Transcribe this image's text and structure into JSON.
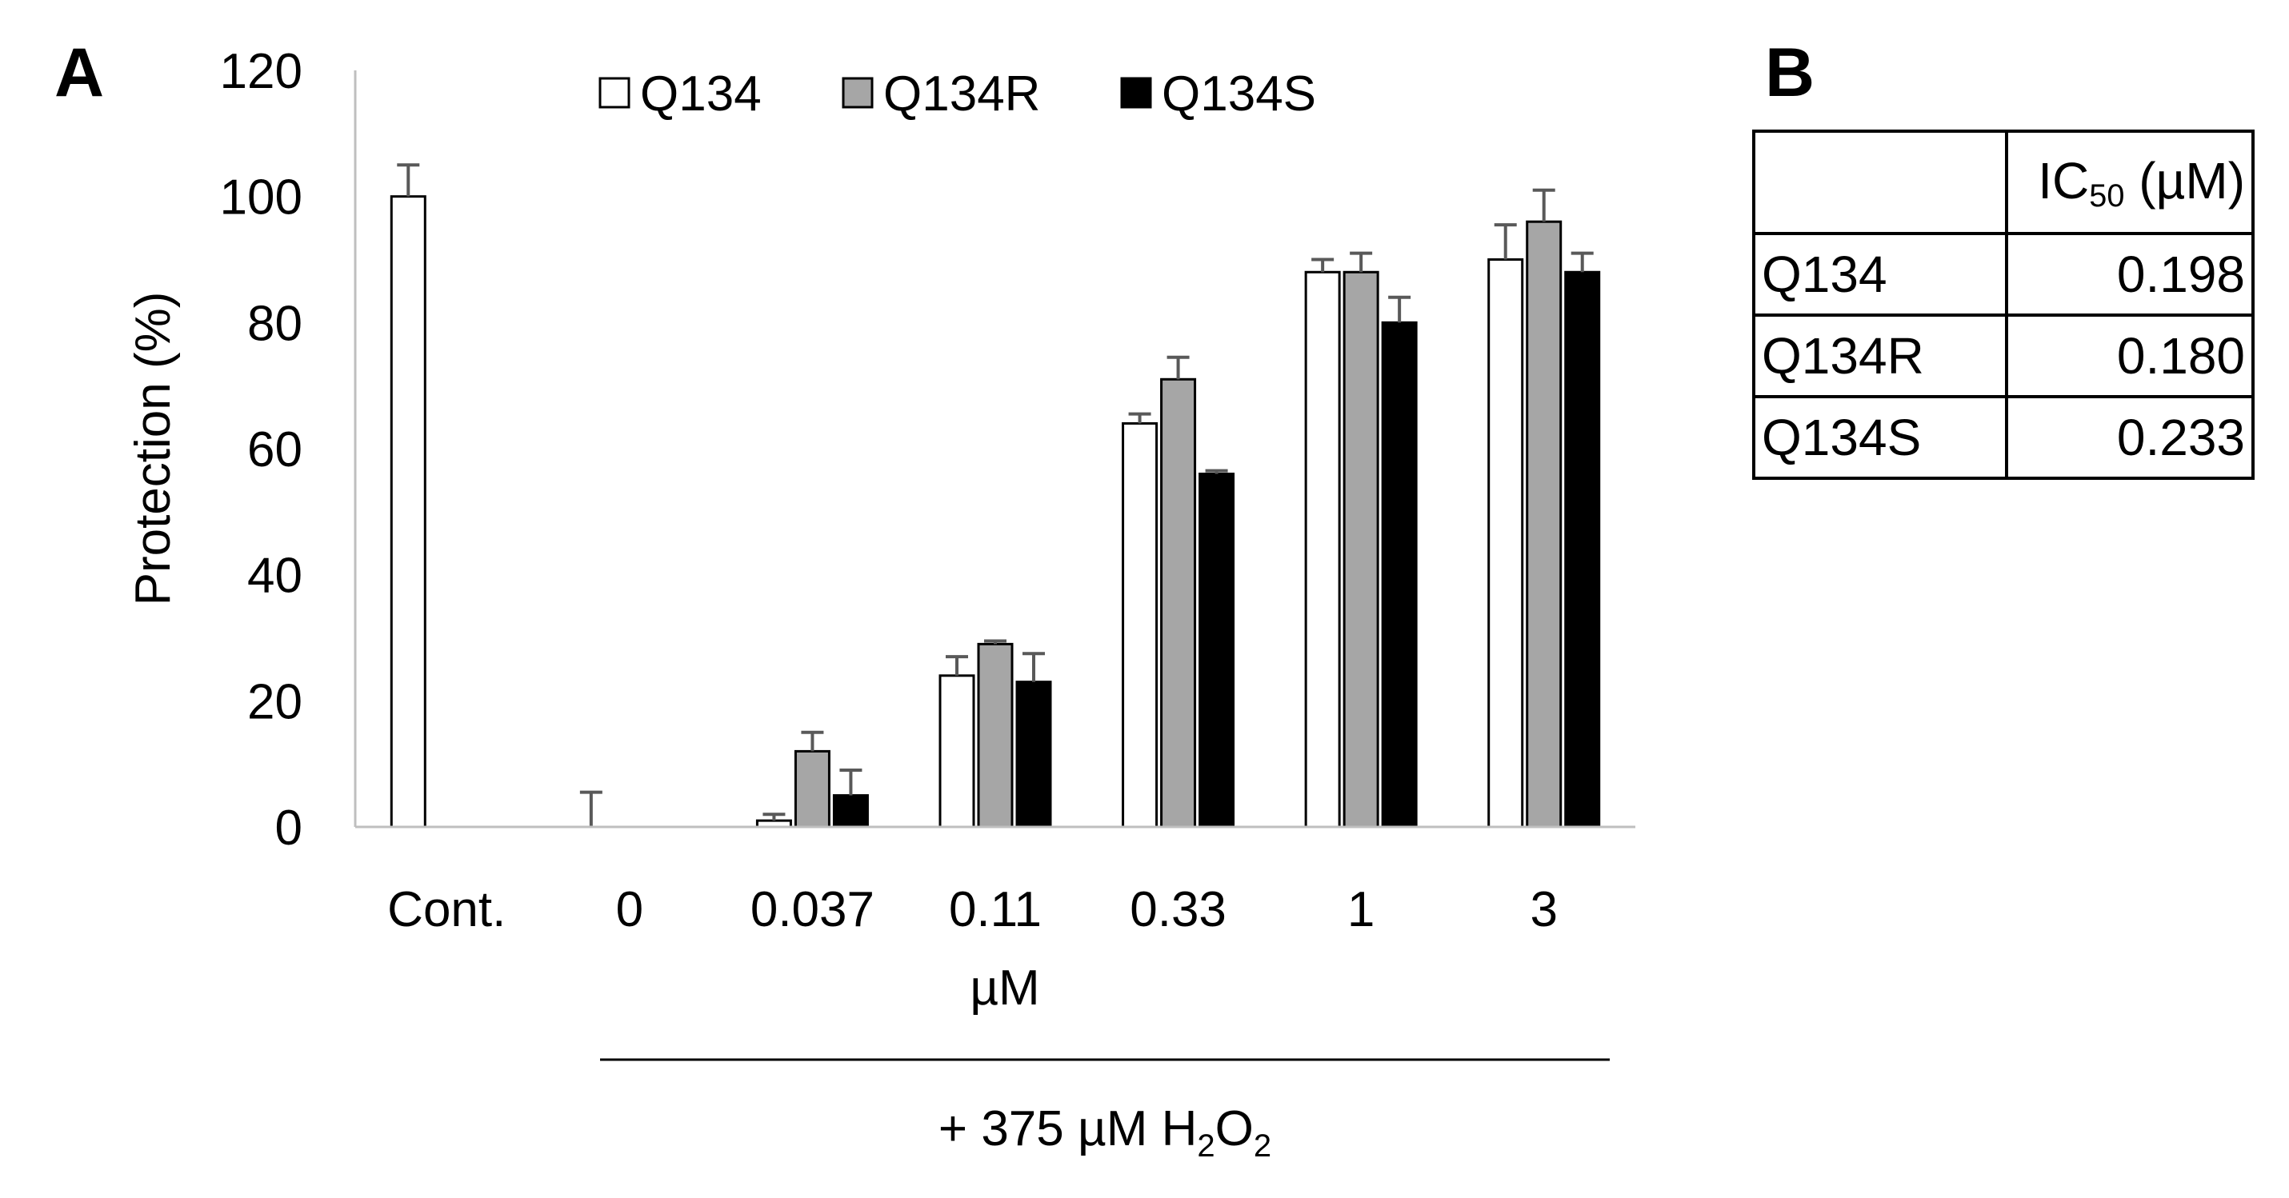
{
  "panel_a_label": "A",
  "panel_b_label": "B",
  "chart_data": {
    "type": "bar",
    "categories": [
      "Cont.",
      "0",
      "0.037",
      "0.11",
      "0.33",
      "1",
      "3"
    ],
    "series": [
      {
        "name": "Q134",
        "color": "#ffffff",
        "values": [
          100,
          0,
          1,
          24,
          64,
          88,
          90
        ],
        "errors": [
          5,
          5.5,
          1,
          3,
          1.5,
          2,
          5.5
        ]
      },
      {
        "name": "Q134R",
        "color": "#a6a6a6",
        "values": [
          null,
          null,
          12,
          29,
          71,
          88,
          96
        ],
        "errors": [
          null,
          null,
          3,
          0.5,
          3.5,
          3,
          5
        ]
      },
      {
        "name": "Q134S",
        "color": "#000000",
        "values": [
          null,
          null,
          5,
          23,
          56,
          80,
          88
        ],
        "errors": [
          null,
          null,
          4,
          4.5,
          0.5,
          4,
          3
        ]
      }
    ],
    "y_ticks": [
      "0",
      "20",
      "40",
      "60",
      "80",
      "100",
      "120"
    ],
    "ylim": [
      0,
      120
    ],
    "ylabel": "Protection (%)",
    "xlabel": "µM",
    "treatment_label_prefix": "+ 375 µM H",
    "treatment_sub1": "2",
    "treatment_mid": "O",
    "treatment_sub2": "2",
    "grid": false,
    "legend_position": "top"
  },
  "ic50_table": {
    "header_prefix": "IC",
    "header_sub": "50",
    "header_suffix": " (µM)",
    "rows": [
      {
        "name": "Q134",
        "value": "0.198"
      },
      {
        "name": "Q134R",
        "value": "0.180"
      },
      {
        "name": "Q134S",
        "value": "0.233"
      }
    ]
  }
}
